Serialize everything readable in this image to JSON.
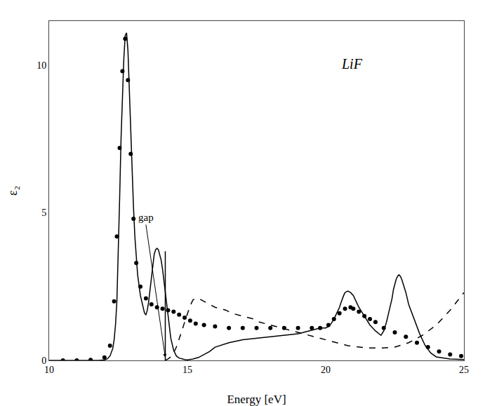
{
  "chart_data": {
    "type": "line",
    "title": "LiF",
    "xlabel": "Energy [eV]",
    "ylabel": "ε₂",
    "xlim": [
      10,
      25
    ],
    "ylim": [
      0,
      11.5
    ],
    "xticks": [
      10,
      15,
      20,
      25
    ],
    "yticks": [
      0,
      5,
      10
    ],
    "grid": false,
    "annotations": [
      {
        "text": "gap",
        "x": 13.5,
        "y": 4.6,
        "arrow_x": 14.2,
        "arrow_y": 0.1
      }
    ],
    "series": [
      {
        "type": "line",
        "line_style": "solid",
        "color": "#000000",
        "x": [
          10.0,
          10.5,
          11.0,
          11.5,
          11.8,
          12.0,
          12.1,
          12.2,
          12.3,
          12.35,
          12.4,
          12.45,
          12.5,
          12.55,
          12.6,
          12.65,
          12.7,
          12.75,
          12.8,
          12.85,
          12.9,
          12.95,
          13.0,
          13.05,
          13.1,
          13.15,
          13.2,
          13.3,
          13.4,
          13.45,
          13.5,
          13.55,
          13.6,
          13.65,
          13.7,
          13.75,
          13.8,
          13.85,
          13.9,
          13.95,
          14.0,
          14.05,
          14.1,
          14.15,
          14.2,
          14.25,
          14.3,
          14.35,
          14.4,
          14.5,
          14.6,
          14.7,
          14.8,
          14.9,
          15.0,
          15.2,
          15.4,
          15.6,
          15.8,
          16.0,
          16.5,
          17.0,
          17.5,
          18.0,
          18.5,
          19.0,
          19.2,
          19.4,
          19.6,
          19.8,
          20.0,
          20.1,
          20.2,
          20.3,
          20.4,
          20.5,
          20.55,
          20.6,
          20.65,
          20.7,
          20.8,
          20.9,
          21.0,
          21.1,
          21.2,
          21.4,
          21.6,
          21.8,
          22.0,
          22.1,
          22.2,
          22.3,
          22.4,
          22.45,
          22.5,
          22.55,
          22.6,
          22.65,
          22.7,
          22.75,
          22.8,
          22.9,
          23.0,
          23.2,
          23.4,
          23.6,
          23.8,
          24.0,
          24.5,
          25.0
        ],
        "values": [
          0.0,
          0.0,
          0.0,
          0.0,
          0.0,
          0.02,
          0.05,
          0.15,
          0.4,
          0.7,
          1.2,
          2.0,
          3.5,
          5.5,
          7.5,
          9.0,
          10.2,
          11.0,
          11.1,
          10.5,
          9.2,
          7.8,
          6.3,
          5.2,
          4.2,
          3.5,
          2.9,
          2.2,
          1.8,
          1.6,
          1.55,
          1.7,
          2.0,
          2.4,
          2.8,
          3.2,
          3.6,
          3.75,
          3.8,
          3.75,
          3.6,
          3.4,
          3.1,
          2.7,
          2.3,
          1.9,
          1.5,
          1.1,
          0.75,
          0.35,
          0.15,
          0.08,
          0.05,
          0.03,
          0.02,
          0.05,
          0.1,
          0.2,
          0.3,
          0.45,
          0.6,
          0.7,
          0.75,
          0.8,
          0.85,
          0.9,
          0.95,
          1.0,
          1.05,
          1.1,
          1.1,
          1.15,
          1.25,
          1.4,
          1.6,
          1.8,
          1.95,
          2.1,
          2.2,
          2.3,
          2.35,
          2.3,
          2.2,
          2.0,
          1.8,
          1.5,
          1.2,
          1.0,
          0.85,
          1.0,
          1.3,
          1.7,
          2.1,
          2.4,
          2.6,
          2.75,
          2.85,
          2.9,
          2.85,
          2.75,
          2.6,
          2.3,
          1.9,
          1.4,
          0.9,
          0.5,
          0.25,
          0.12,
          0.05,
          0.03
        ]
      },
      {
        "type": "line",
        "line_style": "dashed",
        "color": "#000000",
        "x": [
          14.2,
          14.3,
          14.4,
          14.5,
          14.6,
          14.7,
          14.8,
          14.9,
          15.0,
          15.1,
          15.2,
          15.3,
          15.4,
          15.5,
          15.6,
          15.7,
          15.8,
          15.9,
          16.0,
          16.2,
          16.4,
          16.6,
          16.8,
          17.0,
          17.2,
          17.4,
          17.5,
          17.6,
          17.8,
          18.0,
          18.2,
          18.4,
          18.6,
          18.8,
          19.0,
          19.2,
          19.4,
          19.6,
          19.8,
          20.0,
          20.2,
          20.4,
          20.6,
          20.8,
          21.0,
          21.2,
          21.4,
          21.6,
          21.8,
          22.0,
          22.5,
          23.0,
          23.5,
          24.0,
          24.5,
          25.0
        ],
        "values": [
          0.0,
          0.05,
          0.12,
          0.25,
          0.45,
          0.7,
          1.0,
          1.3,
          1.6,
          1.85,
          2.05,
          2.1,
          2.1,
          2.05,
          2.0,
          1.95,
          1.9,
          1.85,
          1.8,
          1.75,
          1.7,
          1.6,
          1.55,
          1.5,
          1.45,
          1.4,
          1.35,
          1.3,
          1.25,
          1.2,
          1.15,
          1.1,
          1.05,
          1.0,
          0.95,
          0.9,
          0.85,
          0.8,
          0.75,
          0.7,
          0.65,
          0.6,
          0.55,
          0.5,
          0.48,
          0.45,
          0.43,
          0.42,
          0.42,
          0.42,
          0.45,
          0.6,
          0.85,
          1.2,
          1.7,
          2.3
        ]
      },
      {
        "type": "scatter",
        "marker": "circle",
        "color": "#000000",
        "x": [
          10.5,
          11.0,
          11.5,
          12.0,
          12.2,
          12.35,
          12.45,
          12.55,
          12.65,
          12.75,
          12.85,
          12.95,
          13.05,
          13.15,
          13.3,
          13.5,
          13.7,
          13.9,
          14.1,
          14.3,
          14.5,
          14.7,
          14.9,
          15.1,
          15.3,
          15.6,
          16.0,
          16.5,
          17.0,
          17.5,
          18.0,
          18.5,
          19.0,
          19.5,
          19.8,
          20.1,
          20.3,
          20.5,
          20.7,
          20.9,
          21.0,
          21.2,
          21.4,
          21.6,
          21.8,
          22.1,
          22.5,
          22.9,
          23.3,
          23.7,
          24.1,
          24.5,
          24.9
        ],
        "values": [
          0.0,
          0.0,
          0.02,
          0.1,
          0.5,
          2.0,
          4.2,
          7.2,
          9.8,
          10.9,
          9.5,
          7.0,
          4.8,
          3.3,
          2.5,
          2.1,
          1.9,
          1.8,
          1.75,
          1.7,
          1.65,
          1.55,
          1.45,
          1.35,
          1.25,
          1.2,
          1.15,
          1.1,
          1.1,
          1.1,
          1.1,
          1.1,
          1.1,
          1.1,
          1.1,
          1.2,
          1.4,
          1.6,
          1.75,
          1.8,
          1.75,
          1.65,
          1.5,
          1.4,
          1.3,
          1.1,
          0.95,
          0.8,
          0.6,
          0.45,
          0.3,
          0.2,
          0.15
        ]
      },
      {
        "type": "line",
        "line_style": "solid",
        "color": "#000000",
        "x": [
          14.2,
          14.2
        ],
        "values": [
          0.0,
          3.7
        ]
      }
    ]
  }
}
